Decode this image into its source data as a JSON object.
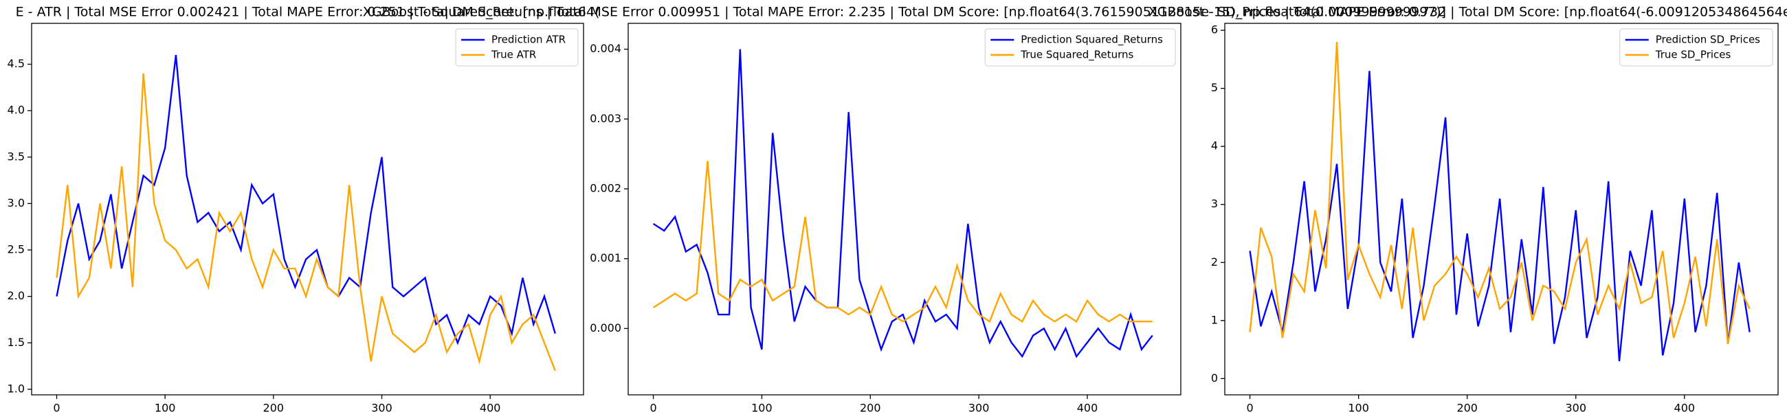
{
  "chart_data": [
    {
      "type": "line",
      "title": "E - ATR | Total MSE Error 0.002421 | Total MAPE Error: 0.251 | Total DM Score: [np.float64(",
      "x": [
        0,
        10,
        20,
        30,
        40,
        50,
        60,
        70,
        80,
        90,
        100,
        110,
        120,
        130,
        140,
        150,
        160,
        170,
        180,
        190,
        200,
        210,
        220,
        230,
        240,
        250,
        260,
        270,
        280,
        290,
        300,
        310,
        320,
        330,
        340,
        350,
        360,
        370,
        380,
        390,
        400,
        410,
        420,
        430,
        440,
        450,
        460
      ],
      "series": [
        {
          "name": "Prediction ATR",
          "color": "#0000ff",
          "values": [
            2.0,
            2.6,
            3.0,
            2.4,
            2.6,
            3.1,
            2.3,
            2.8,
            3.3,
            3.2,
            3.6,
            4.6,
            3.3,
            2.8,
            2.9,
            2.7,
            2.8,
            2.5,
            3.2,
            3.0,
            3.1,
            2.4,
            2.1,
            2.4,
            2.5,
            2.1,
            2.0,
            2.2,
            2.1,
            2.9,
            3.5,
            2.1,
            2.0,
            2.1,
            2.2,
            1.7,
            1.8,
            1.5,
            1.8,
            1.7,
            2.0,
            1.9,
            1.6,
            2.2,
            1.7,
            2.0,
            1.6
          ]
        },
        {
          "name": "True ATR",
          "color": "#ffa500",
          "values": [
            2.2,
            3.2,
            2.0,
            2.2,
            3.0,
            2.3,
            3.4,
            2.1,
            4.4,
            3.0,
            2.6,
            2.5,
            2.3,
            2.4,
            2.1,
            2.9,
            2.7,
            2.9,
            2.4,
            2.1,
            2.5,
            2.3,
            2.3,
            2.0,
            2.4,
            2.1,
            2.0,
            3.2,
            2.1,
            1.3,
            2.0,
            1.6,
            1.5,
            1.4,
            1.5,
            1.8,
            1.4,
            1.6,
            1.7,
            1.3,
            1.8,
            2.0,
            1.5,
            1.7,
            1.8,
            1.5,
            1.2
          ]
        }
      ],
      "xlim": [
        -23.15,
        486.15
      ],
      "ylim": [
        0.94,
        4.94
      ],
      "xticks": [
        0,
        100,
        200,
        300,
        400
      ],
      "yticks": [
        {
          "value": 1,
          "label": "1.0"
        },
        1.5,
        {
          "value": 2,
          "label": "2.0"
        },
        2.5,
        {
          "value": 3,
          "label": "3.0"
        },
        3.5,
        {
          "value": 4,
          "label": "4.0"
        },
        4.5
      ],
      "legend": "upper right"
    },
    {
      "type": "line",
      "title": "XGBoost - Squared_Returns | Total MSE Error 0.009951 | Total MAPE Error: 2.235 | Total DM Score: [np.float64(3.7615905112815e-15), np.float64(0.0009999999997)]",
      "x": [
        0,
        10,
        20,
        30,
        40,
        50,
        60,
        70,
        80,
        90,
        100,
        110,
        120,
        130,
        140,
        150,
        160,
        170,
        180,
        190,
        200,
        210,
        220,
        230,
        240,
        250,
        260,
        270,
        280,
        290,
        300,
        310,
        320,
        330,
        340,
        350,
        360,
        370,
        380,
        390,
        400,
        410,
        420,
        430,
        440,
        450,
        460
      ],
      "series": [
        {
          "name": "Prediction Squared_Returns",
          "color": "#0000ff",
          "values": [
            0.0015,
            0.0014,
            0.0016,
            0.0011,
            0.0012,
            0.0008,
            0.0002,
            0.0002,
            0.004,
            0.0003,
            -0.0003,
            0.0028,
            0.0013,
            0.0001,
            0.0006,
            0.0004,
            0.0003,
            0.0003,
            0.0031,
            0.0007,
            0.0002,
            -0.0003,
            0.0001,
            0.0002,
            -0.0002,
            0.0004,
            0.0001,
            0.0002,
            0.0,
            0.0015,
            0.0003,
            -0.0002,
            0.0001,
            -0.0002,
            -0.0004,
            -0.0001,
            0.0,
            -0.0003,
            0.0,
            -0.0004,
            -0.0002,
            0.0,
            -0.0002,
            -0.0003,
            0.0002,
            -0.0003,
            -0.0001
          ]
        },
        {
          "name": "True Squared_Returns",
          "color": "#ffa500",
          "values": [
            0.0003,
            0.0004,
            0.0005,
            0.0004,
            0.0005,
            0.0024,
            0.0005,
            0.0004,
            0.0007,
            0.0006,
            0.0007,
            0.0004,
            0.0005,
            0.0006,
            0.0016,
            0.0004,
            0.0003,
            0.0003,
            0.0002,
            0.0003,
            0.0002,
            0.0006,
            0.0002,
            0.0001,
            0.0002,
            0.0003,
            0.0006,
            0.0003,
            0.0009,
            0.0004,
            0.0002,
            0.0001,
            0.0005,
            0.0002,
            0.0001,
            0.0004,
            0.0002,
            0.0001,
            0.0002,
            0.0001,
            0.0004,
            0.0002,
            0.0001,
            0.0002,
            0.0001,
            0.0001,
            0.0001
          ]
        }
      ],
      "xlim": [
        -23.15,
        486.15
      ],
      "ylim": [
        -0.00095,
        0.00437
      ],
      "xticks": [
        0,
        100,
        200,
        300,
        400
      ],
      "yticks": [
        {
          "value": 0,
          "label": "0.000"
        },
        {
          "value": 0.001,
          "label": "0.001"
        },
        {
          "value": 0.002,
          "label": "0.002"
        },
        {
          "value": 0.003,
          "label": "0.003"
        },
        {
          "value": 0.004,
          "label": "0.004"
        }
      ],
      "legend": "upper right"
    },
    {
      "type": "line",
      "title": "XGBoost - SD_Prices | Total MAPE Error: 0.732 | Total DM Score: [np.float64(-6.009120534864564e-16), np.fl",
      "x": [
        0,
        10,
        20,
        30,
        40,
        50,
        60,
        70,
        80,
        90,
        100,
        110,
        120,
        130,
        140,
        150,
        160,
        170,
        180,
        190,
        200,
        210,
        220,
        230,
        240,
        250,
        260,
        270,
        280,
        290,
        300,
        310,
        320,
        330,
        340,
        350,
        360,
        370,
        380,
        390,
        400,
        410,
        420,
        430,
        440,
        450,
        460
      ],
      "series": [
        {
          "name": "Prediction SD_Prices",
          "color": "#0000ff",
          "values": [
            2.2,
            0.9,
            1.5,
            0.8,
            2.0,
            3.4,
            1.5,
            2.4,
            3.7,
            1.2,
            2.3,
            5.3,
            2.0,
            1.5,
            3.1,
            0.7,
            1.6,
            3.0,
            4.5,
            1.1,
            2.5,
            0.9,
            1.6,
            3.1,
            0.8,
            2.4,
            1.1,
            3.3,
            0.6,
            1.4,
            2.9,
            0.7,
            1.4,
            3.4,
            0.3,
            2.2,
            1.6,
            2.9,
            0.4,
            1.3,
            3.1,
            0.8,
            1.6,
            3.2,
            0.6,
            2.0,
            0.8
          ]
        },
        {
          "name": "True SD_Prices",
          "color": "#ffa500",
          "values": [
            0.8,
            2.6,
            2.1,
            0.7,
            1.8,
            1.5,
            2.9,
            1.9,
            5.8,
            1.7,
            2.3,
            1.8,
            1.4,
            2.3,
            1.2,
            2.6,
            1.0,
            1.6,
            1.8,
            2.1,
            1.8,
            1.4,
            1.9,
            1.2,
            1.4,
            2.0,
            1.0,
            1.6,
            1.5,
            1.2,
            2.0,
            2.4,
            1.1,
            1.6,
            1.2,
            2.0,
            1.3,
            1.4,
            2.2,
            0.7,
            1.3,
            2.1,
            0.9,
            2.4,
            0.6,
            1.6,
            1.2
          ]
        }
      ],
      "xlim": [
        -23.15,
        486.15
      ],
      "ylim": [
        -0.28,
        6.12
      ],
      "xticks": [
        0,
        100,
        200,
        300,
        400
      ],
      "yticks": [
        0,
        1,
        2,
        3,
        4,
        5,
        6
      ],
      "legend": "upper right"
    }
  ]
}
